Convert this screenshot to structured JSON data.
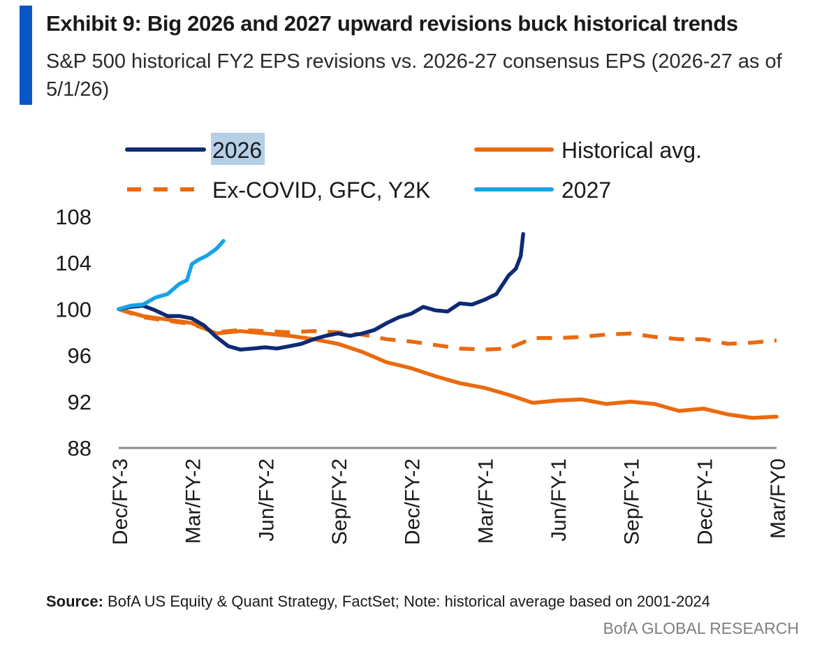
{
  "title": "Exhibit 9: Big 2026 and 2027 upward revisions buck historical trends",
  "subtitle": "S&P 500 historical FY2 EPS revisions vs. 2026-27 consensus EPS (2026-27 as of 5/1/26)",
  "source_label": "Source:",
  "source_text": "BofA US Equity & Quant Strategy, FactSet; Note: historical average based on 2001-2024",
  "brand": "BofA GLOBAL RESEARCH",
  "colors": {
    "accent_bar": "#0a56c9",
    "series_2026": "#0d2a73",
    "series_hist": "#ea6a0e",
    "series_excovid": "#ea6a0e",
    "series_2027": "#17a2e6",
    "axis": "#8c8c8c",
    "legend_highlight": "#b5cfe7"
  },
  "chart_data": {
    "type": "line",
    "x_tick_labels": [
      "Dec/FY-3",
      "Mar/FY-2",
      "Jun/FY-2",
      "Sep/FY-2",
      "Dec/FY-2",
      "Mar/FY-1",
      "Jun/FY-1",
      "Sep/FY-1",
      "Dec/FY-1",
      "Mar/FY0"
    ],
    "y_ticks": [
      88,
      92,
      96,
      100,
      104,
      108
    ],
    "ylim": [
      88,
      108
    ],
    "xlim": [
      0,
      27
    ],
    "grid": false,
    "legend_position": "top",
    "legend": [
      {
        "label": "2026",
        "series": "2026",
        "style": "solid",
        "highlighted": true
      },
      {
        "label": "Historical avg.",
        "series": "hist",
        "style": "solid"
      },
      {
        "label": "Ex-COVID, GFC, Y2K",
        "series": "excovid",
        "style": "dashed"
      },
      {
        "label": "2027",
        "series": "2027",
        "style": "solid"
      }
    ],
    "series": [
      {
        "name": "2026",
        "key": "2026",
        "style": "solid",
        "x": [
          0,
          0.5,
          1,
          1.5,
          2,
          2.5,
          3,
          3.5,
          4,
          4.5,
          5,
          5.5,
          6,
          6.5,
          7,
          7.5,
          8,
          8.5,
          9,
          9.5,
          10,
          10.5,
          11,
          11.5,
          12,
          12.5,
          13,
          13.5,
          14,
          14.5,
          15,
          15.5,
          16,
          16.3,
          16.5,
          16.6
        ],
        "y": [
          100.0,
          100.2,
          100.3,
          99.9,
          99.4,
          99.4,
          99.2,
          98.6,
          97.6,
          96.8,
          96.5,
          96.6,
          96.7,
          96.6,
          96.8,
          97.0,
          97.4,
          97.7,
          97.9,
          97.7,
          97.9,
          98.2,
          98.8,
          99.3,
          99.6,
          100.2,
          99.9,
          99.8,
          100.5,
          100.4,
          100.8,
          101.3,
          102.9,
          103.5,
          104.6,
          106.5
        ]
      },
      {
        "name": "Historical avg.",
        "key": "hist",
        "style": "solid",
        "x": [
          0,
          1,
          2,
          3,
          4,
          5,
          6,
          7,
          8,
          9,
          10,
          11,
          12,
          13,
          14,
          15,
          16,
          17,
          18,
          19,
          20,
          21,
          22,
          23,
          24,
          25,
          26,
          27
        ],
        "y": [
          100.0,
          99.4,
          99.1,
          98.8,
          97.9,
          98.1,
          97.9,
          97.7,
          97.4,
          97.0,
          96.3,
          95.4,
          94.9,
          94.2,
          93.6,
          93.2,
          92.6,
          91.9,
          92.1,
          92.2,
          91.8,
          92.0,
          91.8,
          91.2,
          91.4,
          90.9,
          90.6,
          90.7
        ]
      },
      {
        "name": "Ex-COVID, GFC, Y2K",
        "key": "excovid",
        "style": "dashed",
        "x": [
          0,
          1,
          2,
          3,
          4,
          5,
          6,
          7,
          8,
          9,
          10,
          11,
          12,
          13,
          14,
          15,
          16,
          17,
          18,
          19,
          20,
          21,
          22,
          23,
          24,
          25,
          26,
          27
        ],
        "y": [
          100.0,
          99.3,
          99.0,
          98.7,
          98.0,
          98.2,
          98.1,
          98.0,
          98.1,
          98.0,
          97.8,
          97.4,
          97.2,
          96.9,
          96.6,
          96.5,
          96.6,
          97.5,
          97.5,
          97.6,
          97.8,
          97.9,
          97.6,
          97.4,
          97.4,
          97.0,
          97.1,
          97.3
        ]
      },
      {
        "name": "2027",
        "key": "2027",
        "style": "solid",
        "x": [
          0,
          0.5,
          1,
          1.5,
          2,
          2.5,
          2.8,
          3,
          3.3,
          3.6,
          4,
          4.3
        ],
        "y": [
          100.0,
          100.3,
          100.4,
          101.0,
          101.3,
          102.2,
          102.5,
          103.9,
          104.3,
          104.6,
          105.2,
          105.9
        ]
      }
    ]
  }
}
